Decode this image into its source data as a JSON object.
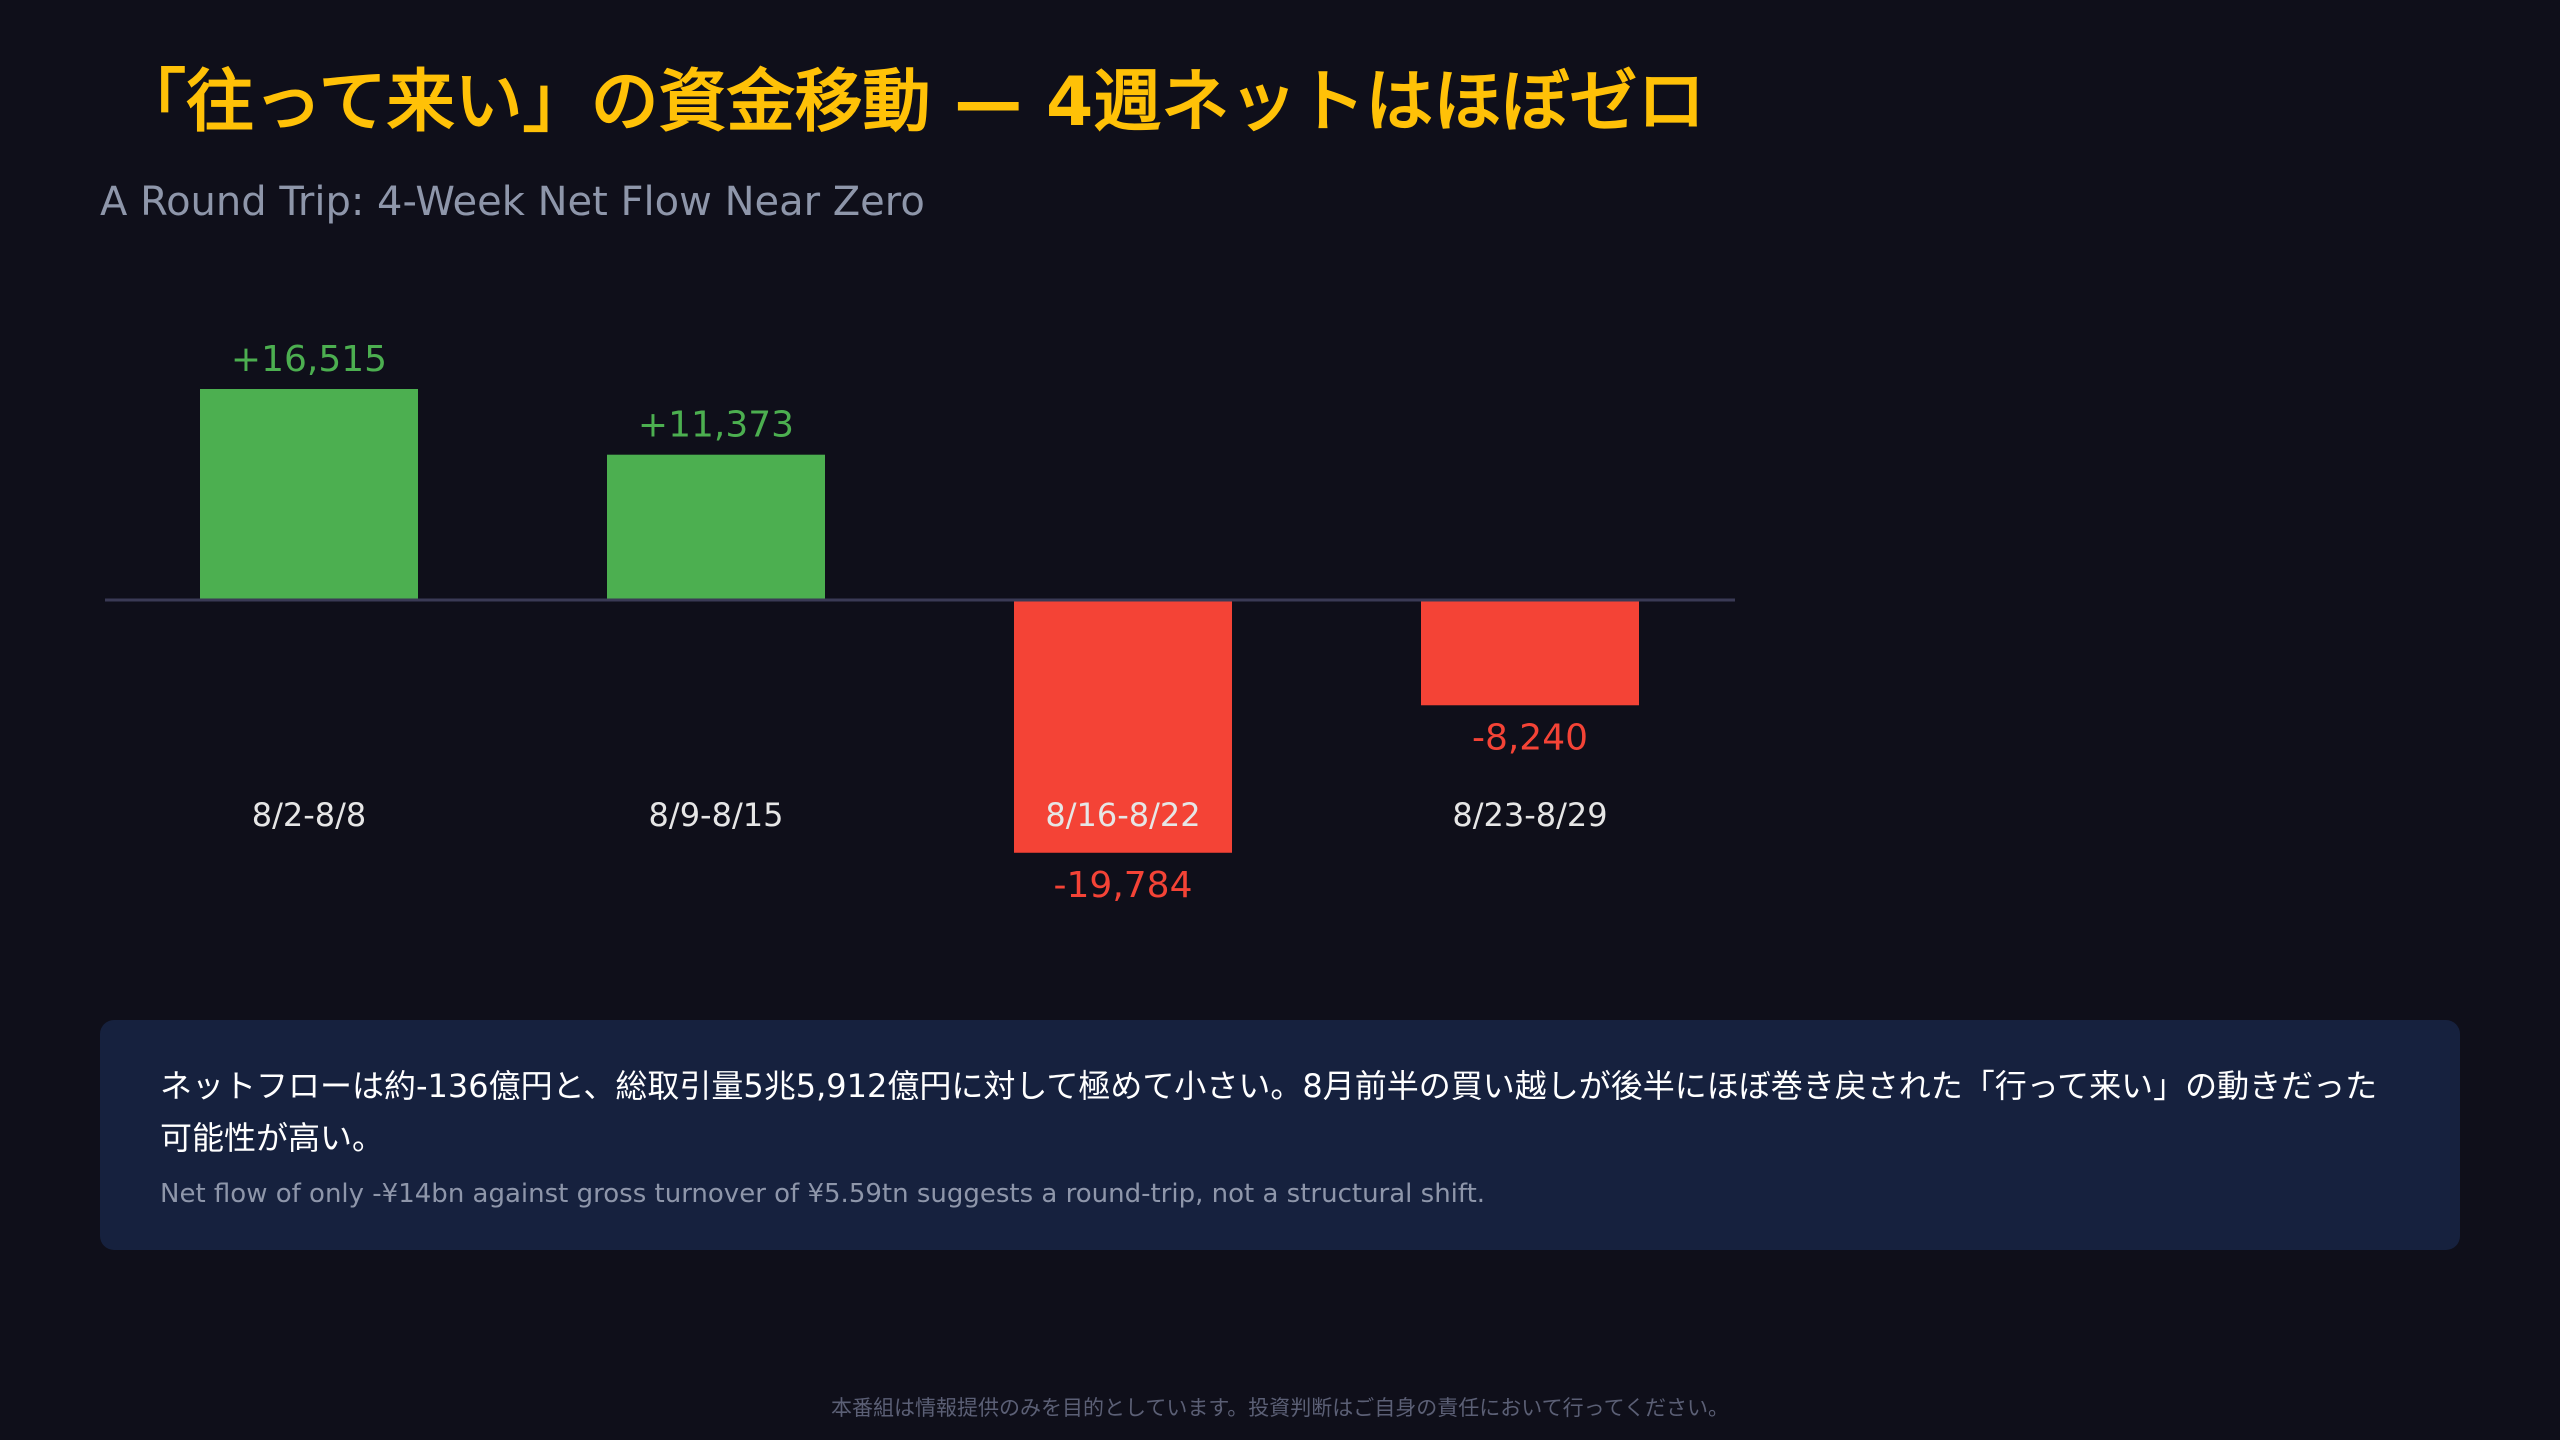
{
  "header": {
    "title": "「往って来い」の資金移動 — 4週ネットはほぼゼロ",
    "subtitle": "A Round Trip: 4-Week Net Flow Near Zero"
  },
  "chart_data": {
    "type": "bar",
    "categories": [
      "8/2-8/8",
      "8/9-8/15",
      "8/16-8/22",
      "8/23-8/29"
    ],
    "values": [
      16515,
      11373,
      -19784,
      -8240
    ],
    "value_labels": [
      "+16,515",
      "+11,373",
      "-19,784",
      "-8,240"
    ],
    "title": "",
    "xlabel": "",
    "ylabel": "",
    "ylim": [
      -19784,
      16515
    ],
    "grid": false,
    "legend": "none",
    "colors": {
      "positive": "#4caf50",
      "negative": "#f44336",
      "baseline": "#3a3a55",
      "category_text": "#e6e6e6"
    }
  },
  "note": {
    "ja": "ネットフローは約-136億円と、総取引量5兆5,912億円に対して極めて小さい。8月前半の買い越しが後半にほぼ巻き戻された「行って来い」の動きだった可能性が高い。",
    "en": "Net flow of only -¥14bn against gross turnover of ¥5.59tn suggests a round-trip, not a structural shift."
  },
  "footer": {
    "disclaimer": "本番組は情報提供のみを目的としています。投資判断はご自身の責任において行ってください。"
  }
}
